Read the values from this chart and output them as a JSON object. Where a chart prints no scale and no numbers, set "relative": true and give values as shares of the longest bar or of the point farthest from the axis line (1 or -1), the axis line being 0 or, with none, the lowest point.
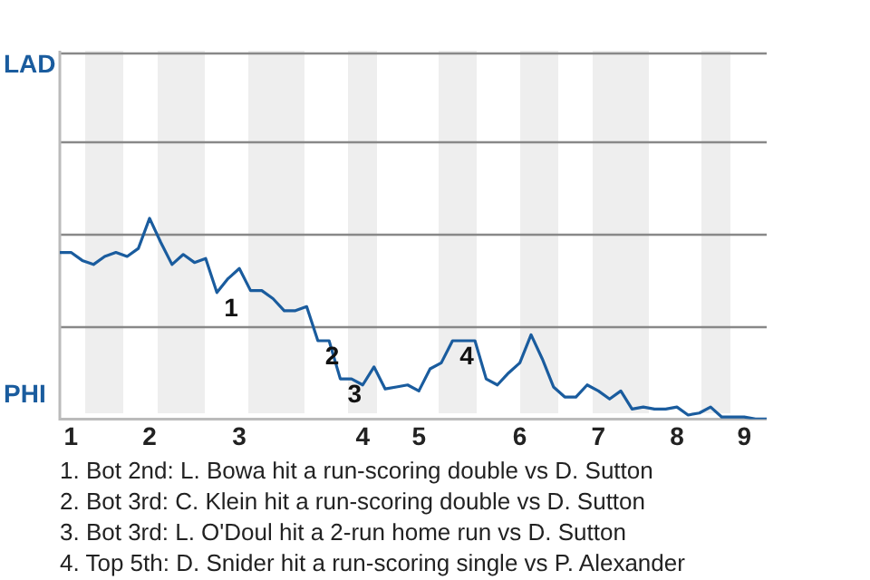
{
  "chart_data": {
    "type": "line",
    "relative": true,
    "legend": false,
    "marker": "none",
    "line_style": "solid",
    "categories": [
      null,
      "1",
      null,
      null,
      null,
      null,
      null,
      null,
      "2",
      null,
      null,
      null,
      null,
      null,
      null,
      null,
      "3",
      null,
      null,
      null,
      null,
      null,
      null,
      null,
      null,
      null,
      null,
      "4",
      null,
      null,
      null,
      null,
      "5",
      null,
      null,
      null,
      null,
      null,
      null,
      null,
      null,
      "6",
      null,
      null,
      null,
      null,
      null,
      null,
      "7",
      null,
      null,
      null,
      null,
      null,
      null,
      "8",
      null,
      null,
      null,
      null,
      null,
      "9",
      null,
      null
    ],
    "series": [
      {
        "color": "#1a5c9e",
        "values": [
          0.83,
          0.83,
          0.79,
          0.77,
          0.81,
          0.83,
          0.81,
          0.85,
          1,
          0.88,
          0.77,
          0.82,
          0.78,
          0.8,
          0.63,
          0.7,
          0.75,
          0.64,
          0.64,
          0.6,
          0.54,
          0.54,
          0.56,
          0.39,
          0.39,
          0.2,
          0.2,
          0.17,
          0.26,
          0.15,
          0.16,
          0.17,
          0.14,
          0.25,
          0.28,
          0.39,
          0.39,
          0.39,
          0.2,
          0.17,
          0.23,
          0.28,
          0.42,
          0.3,
          0.16,
          0.11,
          0.11,
          0.17,
          0.14,
          0.1,
          0.14,
          0.05,
          0.06,
          0.05,
          0.05,
          0.06,
          0.02,
          0.03,
          0.06,
          0.01,
          0.01,
          0.01,
          0,
          0
        ]
      }
    ],
    "ref_lines": [
      {
        "axis": "y",
        "value": 0.46,
        "color": "#888888"
      },
      {
        "axis": "y",
        "value": 0.92,
        "color": "#888888"
      },
      {
        "axis": "y",
        "value": 1.38,
        "color": "#888888"
      },
      {
        "axis": "y",
        "value": 1.83,
        "color": "#888888"
      }
    ],
    "annotations": [
      "LAD",
      "PHI",
      "1",
      "2",
      "3",
      "4",
      "1. Bot 2nd: L. Bowa hit a run-scoring double vs D. Sutton",
      "2. Bot 3rd: C. Klein hit a run-scoring double vs D. Sutton",
      "3. Bot 3rd: L. O'Doul hit a 2-run home run vs D. Sutton",
      "4. Top 5th: D. Snider hit a run-scoring single vs P. Alexander"
    ]
  }
}
